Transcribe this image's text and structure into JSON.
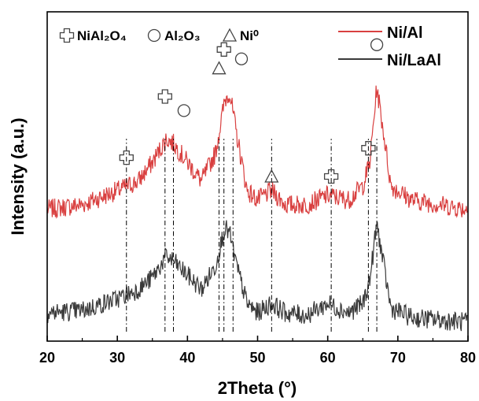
{
  "chart_data": {
    "type": "line",
    "title": "",
    "xlabel": "2Theta (°)",
    "ylabel": "Intensity (a.u.)",
    "xlim": [
      20,
      80
    ],
    "xticks": [
      "20",
      "30",
      "40",
      "50",
      "60",
      "70",
      "80"
    ],
    "grid": false,
    "y_ticks_shown": false,
    "legend_position": "top-right",
    "colors": {
      "ni_al": "#d94040",
      "ni_laal": "#3a3a3a"
    },
    "series": [
      {
        "name": "Ni/Al",
        "x": [
          20,
          25,
          30,
          33,
          35,
          37,
          38,
          40,
          42,
          44,
          45.3,
          46,
          47,
          48.5,
          50,
          52,
          54,
          57,
          60,
          63,
          65,
          66,
          67,
          68,
          69,
          72,
          76,
          80
        ],
        "y": [
          28,
          29,
          32,
          34,
          38,
          43,
          42,
          38,
          34,
          40,
          51,
          53,
          44,
          32,
          30,
          32,
          29,
          29,
          31,
          30,
          33,
          38,
          54,
          44,
          33,
          30,
          29,
          28
        ]
      },
      {
        "name": "Ni/LaAl",
        "x": [
          20,
          25,
          30,
          33,
          35,
          37,
          38,
          40,
          42,
          44,
          45.3,
          46,
          47,
          48.5,
          50,
          52,
          54,
          57,
          60,
          63,
          65,
          66,
          67,
          68,
          69,
          72,
          76,
          80
        ],
        "y": [
          6,
          6.5,
          9,
          11,
          13.5,
          18,
          17,
          14,
          11,
          16,
          24,
          23,
          16,
          8,
          6,
          8,
          6,
          5.5,
          8,
          6,
          8,
          13,
          25,
          16,
          7,
          5,
          4.5,
          4
        ]
      }
    ],
    "phase_legend": [
      {
        "symbol": "cross",
        "label": "NiAl₂O₄"
      },
      {
        "symbol": "circle",
        "label": "Al₂O₃"
      },
      {
        "symbol": "triangle",
        "label": "Ni⁰"
      }
    ],
    "reference_lines": [
      {
        "x": 31.3,
        "phase": "NiAl₂O₄",
        "marker_y": 39
      },
      {
        "x": 36.8,
        "phase": "NiAl₂O₄",
        "marker_y": 52
      },
      {
        "x": 38.0,
        "phase": "Al₂O₃",
        "marker_y": 49
      },
      {
        "x": 44.5,
        "phase": "Ni⁰",
        "marker_y": 58
      },
      {
        "x": 45.2,
        "phase": "NiAl₂O₄",
        "marker_y": 62
      },
      {
        "x": 46.5,
        "phase": "Al₂O₃",
        "marker_y": 60
      },
      {
        "x": 52.0,
        "phase": "Ni⁰",
        "marker_y": 35
      },
      {
        "x": 60.5,
        "phase": "NiAl₂O₄",
        "marker_y": 35
      },
      {
        "x": 65.8,
        "phase": "NiAl₂O₄",
        "marker_y": 41
      },
      {
        "x": 67.0,
        "phase": "Al₂O₃",
        "marker_y": 63
      }
    ],
    "reference_line_y_range": [
      2,
      43
    ]
  }
}
